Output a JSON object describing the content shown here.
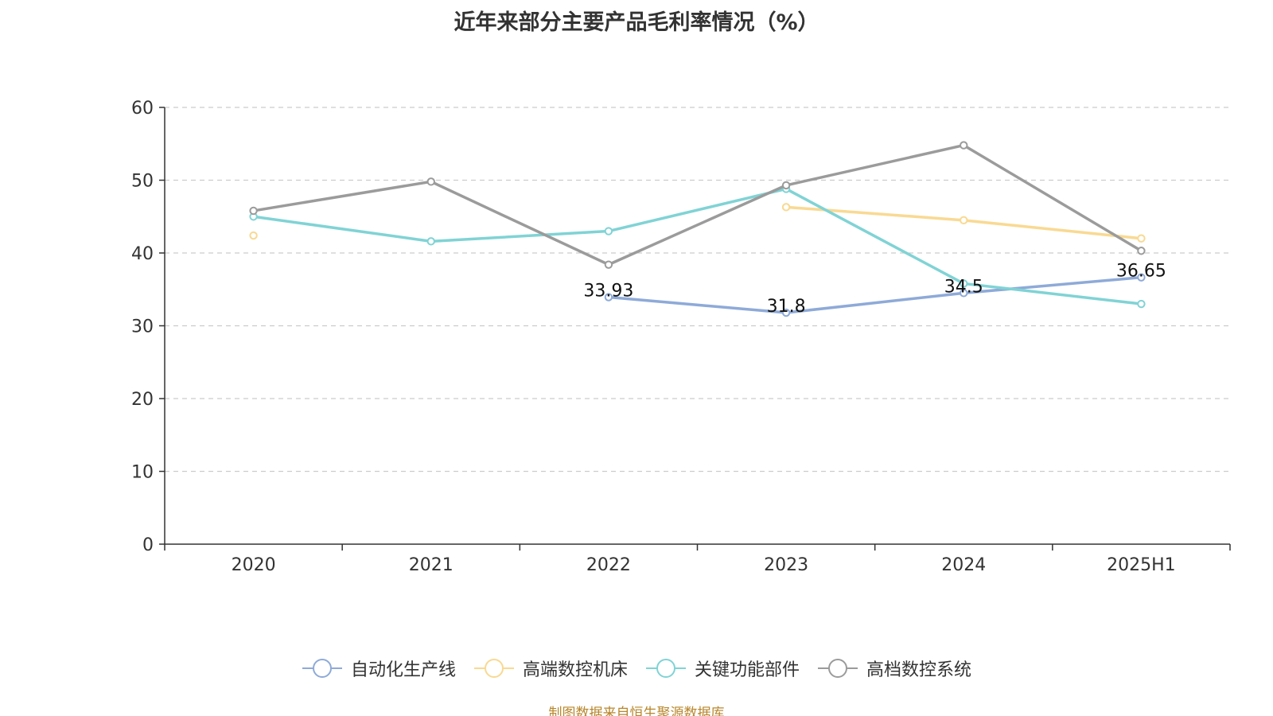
{
  "chart_data": {
    "type": "line",
    "title": "近年来部分主要产品毛利率情况（%）",
    "categories": [
      "2020",
      "2021",
      "2022",
      "2023",
      "2024",
      "2025H1"
    ],
    "ylim": [
      0,
      60
    ],
    "yticks": [
      0,
      10,
      20,
      30,
      40,
      50,
      60
    ],
    "grid": true,
    "legend_position": "bottom",
    "series": [
      {
        "name": "自动化生产线",
        "color": "#8eaad8",
        "values": [
          null,
          null,
          33.93,
          31.8,
          34.5,
          36.65
        ],
        "labels": [
          "",
          "",
          "33.93",
          "31.8",
          "34.5",
          "36.65"
        ]
      },
      {
        "name": "高端数控机床",
        "color": "#f9d992",
        "values": [
          42.4,
          null,
          null,
          46.3,
          44.5,
          42.0
        ],
        "labels": [
          "",
          "",
          "",
          "",
          "",
          ""
        ]
      },
      {
        "name": "关键功能部件",
        "color": "#80d3d5",
        "values": [
          45.0,
          41.6,
          43.0,
          48.8,
          35.8,
          33.0
        ],
        "labels": [
          "",
          "",
          "",
          "",
          "",
          ""
        ]
      },
      {
        "name": "高档数控系统",
        "color": "#9b9b9b",
        "values": [
          45.8,
          49.8,
          38.4,
          49.3,
          54.8,
          40.3
        ],
        "labels": [
          "",
          "",
          "",
          "",
          "",
          ""
        ]
      }
    ]
  },
  "source_note": "制图数据来自恒生聚源数据库"
}
